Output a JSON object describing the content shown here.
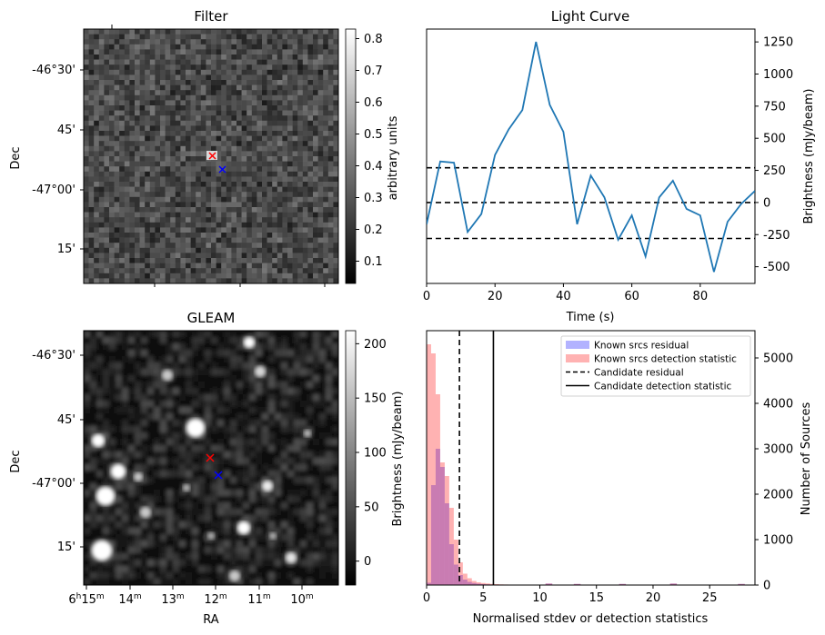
{
  "panels": {
    "filter": {
      "title": "Filter",
      "ylabel": "Dec",
      "yticks": [
        "-46°30'",
        "45'",
        "-47°00'",
        "15'"
      ],
      "colorbar_label": "arbitrary units",
      "colorbar_ticks": [
        "0.1",
        "0.2",
        "0.3",
        "0.4",
        "0.5",
        "0.6",
        "0.7",
        "0.8"
      ],
      "colorbar_range": [
        0.03,
        0.83
      ]
    },
    "gleam": {
      "title": "GLEAM",
      "ylabel": "Dec",
      "xlabel": "RA",
      "yticks": [
        "-46°30'",
        "45'",
        "-47°00'",
        "15'"
      ],
      "xticks": [
        {
          "main": "6",
          "sup1": "h",
          "mid": "15",
          "sup2": "m"
        },
        {
          "main": "",
          "sup1": "",
          "mid": "14",
          "sup2": "m"
        },
        {
          "main": "",
          "sup1": "",
          "mid": "13",
          "sup2": "m"
        },
        {
          "main": "",
          "sup1": "",
          "mid": "12",
          "sup2": "m"
        },
        {
          "main": "",
          "sup1": "",
          "mid": "11",
          "sup2": "m"
        },
        {
          "main": "",
          "sup1": "",
          "mid": "10",
          "sup2": "m"
        }
      ],
      "colorbar_label": "Brightness (mJy/beam)",
      "colorbar_ticks": [
        "0",
        "50",
        "100",
        "150",
        "200"
      ],
      "colorbar_range": [
        -22,
        212
      ]
    }
  },
  "markers": {
    "red": "#ff0000",
    "blue": "#0000ff"
  },
  "chart_data": [
    {
      "type": "line",
      "title": "Light Curve",
      "xlabel": "Time (s)",
      "ylabel": "Brightness (mJy/beam)",
      "xlim": [
        0,
        96
      ],
      "ylim": [
        -630,
        1350
      ],
      "xticks": [
        0,
        20,
        40,
        60,
        80
      ],
      "yticks": [
        -500,
        -250,
        0,
        250,
        500,
        750,
        1000,
        1250
      ],
      "line_color": "#1f77b4",
      "series": [
        {
          "x": [
            0,
            4,
            8,
            12,
            16,
            20,
            24,
            28,
            32,
            36,
            40,
            44,
            48,
            52,
            56,
            60,
            64,
            68,
            72,
            76,
            80,
            84,
            88,
            92,
            96
          ],
          "y": [
            -170,
            320,
            310,
            -230,
            -90,
            370,
            570,
            720,
            1250,
            760,
            550,
            -170,
            210,
            40,
            -290,
            -100,
            -420,
            40,
            170,
            -50,
            -100,
            -540,
            -150,
            -10,
            90
          ]
        }
      ],
      "hlines": [
        270,
        0,
        -280
      ],
      "hline_style": "dashed"
    },
    {
      "type": "histogram",
      "xlabel": "Normalised stdev or detection statistics",
      "ylabel": "Number of Sources",
      "xlim": [
        0,
        29
      ],
      "ylim": [
        0,
        5600
      ],
      "xticks": [
        0,
        5,
        10,
        15,
        20,
        25
      ],
      "yticks": [
        0,
        1000,
        2000,
        3000,
        4000,
        5000
      ],
      "bin_width": 0.4,
      "series": [
        {
          "name": "Known srcs residual",
          "color": "#0000ff",
          "alpha": 0.3,
          "counts": [
            50,
            2200,
            3000,
            2600,
            1800,
            900,
            450,
            220,
            120,
            70,
            45,
            30,
            20,
            15,
            10,
            8
          ]
        },
        {
          "name": "Known srcs detection statistic",
          "color": "#ff0000",
          "alpha": 0.3,
          "counts": [
            5300,
            5100,
            4200,
            2700,
            2400,
            1700,
            1000,
            500,
            250,
            150,
            90,
            60,
            45,
            35,
            25,
            20,
            15,
            12,
            10,
            8
          ]
        }
      ],
      "vlines": [
        {
          "name": "Candidate residual",
          "x": 2.9,
          "style": "dashed"
        },
        {
          "name": "Candidate detection statistic",
          "x": 5.9,
          "style": "solid"
        }
      ],
      "legend_position": "top-right"
    }
  ]
}
